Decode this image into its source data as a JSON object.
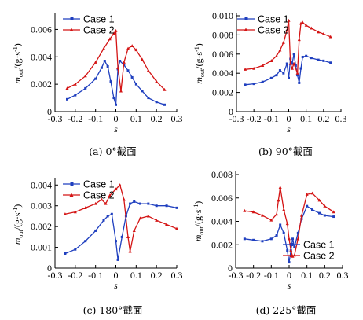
{
  "colors": {
    "case1": "#1f3fbf",
    "case2": "#d41414"
  },
  "chart_data": [
    {
      "type": "line",
      "caption": "(a) 0°截面",
      "xlabel": "s",
      "ylabel_main": "m",
      "ylabel_sub": "out",
      "ylabel_unit": "/(g·s",
      "ylabel_exp": "-1",
      "ylabel_close": ")",
      "xlim": [
        -0.3,
        0.3
      ],
      "ylim": [
        0,
        0.007
      ],
      "xticks": [
        -0.3,
        -0.2,
        -0.1,
        0,
        0.1,
        0.2,
        0.3
      ],
      "xticklabels": [
        "-0.3",
        "-0.2",
        "-0.1",
        "0",
        "0.1",
        "0.2",
        "0.3"
      ],
      "yticks": [
        0,
        0.002,
        0.004,
        0.006
      ],
      "yticklabels": [
        "0",
        "0.002",
        "0.004",
        "0.006"
      ],
      "legend_position": "top-left",
      "series": [
        {
          "name": "Case 1",
          "x": [
            -0.24,
            -0.2,
            -0.15,
            -0.1,
            -0.07,
            -0.055,
            -0.04,
            -0.025,
            -0.01,
            0,
            0.01,
            0.02,
            0.04,
            0.06,
            0.08,
            0.1,
            0.13,
            0.16,
            0.2,
            0.24
          ],
          "y": [
            0.0009,
            0.0012,
            0.0017,
            0.0024,
            0.0032,
            0.0037,
            0.0033,
            0.0022,
            0.001,
            0.0005,
            0.0031,
            0.0037,
            0.0034,
            0.003,
            0.0025,
            0.002,
            0.0015,
            0.001,
            0.0007,
            0.0005
          ]
        },
        {
          "name": "Case 2",
          "x": [
            -0.24,
            -0.2,
            -0.15,
            -0.1,
            -0.06,
            -0.03,
            -0.01,
            0,
            0.01,
            0.025,
            0.04,
            0.06,
            0.08,
            0.1,
            0.13,
            0.16,
            0.2,
            0.24
          ],
          "y": [
            0.0017,
            0.002,
            0.0026,
            0.0036,
            0.0046,
            0.0053,
            0.0057,
            0.0059,
            0.0032,
            0.0015,
            0.0036,
            0.0046,
            0.0048,
            0.0045,
            0.0038,
            0.003,
            0.0022,
            0.0016
          ]
        }
      ]
    },
    {
      "type": "line",
      "caption": "(b) 90°截面",
      "xlabel": "s",
      "ylabel_main": "m",
      "ylabel_sub": "out",
      "ylabel_unit": "/(g·s",
      "ylabel_exp": "-1",
      "ylabel_close": ")",
      "xlim": [
        -0.3,
        0.3
      ],
      "ylim": [
        0,
        0.01
      ],
      "xticks": [
        -0.3,
        -0.2,
        -0.1,
        0,
        0.1,
        0.2,
        0.3
      ],
      "xticklabels": [
        "-0.3",
        "-0.2",
        "-0.1",
        "0",
        "0.1",
        "0.2",
        "0.3"
      ],
      "yticks": [
        0,
        0.002,
        0.004,
        0.006,
        0.008,
        0.01
      ],
      "yticklabels": [
        "0",
        "0.002",
        "0.004",
        "0.006",
        "0.008",
        "0.010"
      ],
      "legend_position": "top-left",
      "series": [
        {
          "name": "Case 1",
          "x": [
            -0.25,
            -0.2,
            -0.15,
            -0.1,
            -0.07,
            -0.05,
            -0.03,
            -0.01,
            0,
            0.01,
            0.02,
            0.03,
            0.04,
            0.05,
            0.06,
            0.07,
            0.08,
            0.1,
            0.13,
            0.17,
            0.2,
            0.24
          ],
          "y": [
            0.0028,
            0.0029,
            0.0031,
            0.0035,
            0.0038,
            0.0043,
            0.004,
            0.005,
            0.0035,
            0.0055,
            0.005,
            0.006,
            0.0048,
            0.0038,
            0.003,
            0.0045,
            0.0057,
            0.0058,
            0.0056,
            0.0054,
            0.0053,
            0.0051
          ]
        },
        {
          "name": "Case 2",
          "x": [
            -0.25,
            -0.2,
            -0.15,
            -0.1,
            -0.07,
            -0.05,
            -0.03,
            -0.01,
            0,
            0.01,
            0.02,
            0.03,
            0.05,
            0.06,
            0.07,
            0.08,
            0.1,
            0.13,
            0.17,
            0.2,
            0.24
          ],
          "y": [
            0.0044,
            0.0045,
            0.0048,
            0.0053,
            0.0058,
            0.0064,
            0.0072,
            0.0085,
            0.0095,
            0.005,
            0.0045,
            0.005,
            0.004,
            0.0075,
            0.0092,
            0.0093,
            0.009,
            0.0087,
            0.0083,
            0.0081,
            0.0078
          ]
        }
      ]
    },
    {
      "type": "line",
      "caption": "(c) 180°截面",
      "xlabel": "s",
      "ylabel_main": "m",
      "ylabel_sub": "out",
      "ylabel_unit": "/(g·s",
      "ylabel_exp": "-1",
      "ylabel_close": ")",
      "xlim": [
        -0.3,
        0.3
      ],
      "ylim": [
        0,
        0.0042
      ],
      "xticks": [
        -0.3,
        -0.2,
        -0.1,
        0,
        0.1,
        0.2,
        0.3
      ],
      "xticklabels": [
        "-0.3",
        "-0.2",
        "-0.1",
        "0",
        "0.1",
        "0.2",
        "0.3"
      ],
      "yticks": [
        0,
        0.001,
        0.002,
        0.003,
        0.004
      ],
      "yticklabels": [
        "0",
        "0.001",
        "0.002",
        "0.003",
        "0.004"
      ],
      "legend_position": "top-left",
      "series": [
        {
          "name": "Case 1",
          "x": [
            -0.25,
            -0.2,
            -0.15,
            -0.1,
            -0.06,
            -0.04,
            -0.02,
            0,
            0.01,
            0.03,
            0.05,
            0.07,
            0.09,
            0.12,
            0.16,
            0.2,
            0.25,
            0.3
          ],
          "y": [
            0.0007,
            0.0009,
            0.0013,
            0.0018,
            0.0023,
            0.0025,
            0.0026,
            0.0013,
            0.0004,
            0.0015,
            0.0025,
            0.0031,
            0.0032,
            0.0031,
            0.0031,
            0.003,
            0.003,
            0.0029
          ]
        },
        {
          "name": "Case 2",
          "x": [
            -0.25,
            -0.2,
            -0.15,
            -0.1,
            -0.07,
            -0.05,
            -0.03,
            0,
            0.02,
            0.04,
            0.06,
            0.07,
            0.09,
            0.12,
            0.16,
            0.2,
            0.25,
            0.3
          ],
          "y": [
            0.0026,
            0.0027,
            0.0029,
            0.0031,
            0.0033,
            0.0031,
            0.0035,
            0.0038,
            0.004,
            0.0033,
            0.0015,
            0.0008,
            0.0018,
            0.0024,
            0.0025,
            0.0023,
            0.0021,
            0.0019
          ]
        }
      ]
    },
    {
      "type": "line",
      "caption": "(d) 225°截面",
      "xlabel": "s",
      "ylabel_main": "m",
      "ylabel_sub": "out",
      "ylabel_unit": "/(g·s",
      "ylabel_exp": "-1",
      "ylabel_close": ")",
      "xlim": [
        -0.3,
        0.3
      ],
      "ylim": [
        0,
        0.008
      ],
      "xticks": [
        -0.3,
        -0.2,
        -0.1,
        0,
        0.1,
        0.2,
        0.3
      ],
      "xticklabels": [
        "-0.3",
        "-0.2",
        "-0.1",
        "0",
        "0.1",
        "0.2",
        "0.3"
      ],
      "yticks": [
        0,
        0.002,
        0.004,
        0.006,
        0.008
      ],
      "yticklabels": [
        "0",
        "0.002",
        "0.004",
        "0.006",
        "0.008"
      ],
      "legend_position": "lower-right",
      "series": [
        {
          "name": "Case 1",
          "x": [
            -0.25,
            -0.2,
            -0.15,
            -0.1,
            -0.07,
            -0.05,
            -0.03,
            -0.01,
            0,
            0.01,
            0.02,
            0.03,
            0.05,
            0.07,
            0.1,
            0.13,
            0.17,
            0.2,
            0.25
          ],
          "y": [
            0.0025,
            0.0024,
            0.0023,
            0.0025,
            0.0028,
            0.0037,
            0.003,
            0.0015,
            0.0005,
            0.0015,
            0.0025,
            0.0018,
            0.003,
            0.0042,
            0.0053,
            0.005,
            0.0047,
            0.0045,
            0.0044
          ]
        },
        {
          "name": "Case 2",
          "x": [
            -0.25,
            -0.2,
            -0.15,
            -0.1,
            -0.07,
            -0.06,
            -0.05,
            -0.03,
            -0.01,
            0,
            0.01,
            0.02,
            0.03,
            0.05,
            0.07,
            0.1,
            0.13,
            0.17,
            0.2,
            0.25
          ],
          "y": [
            0.0049,
            0.0048,
            0.0045,
            0.0041,
            0.0046,
            0.0058,
            0.0069,
            0.005,
            0.0038,
            0.0025,
            0.0015,
            0.001,
            0.0011,
            0.0025,
            0.0045,
            0.0063,
            0.0064,
            0.0058,
            0.0053,
            0.0048
          ]
        }
      ]
    }
  ]
}
